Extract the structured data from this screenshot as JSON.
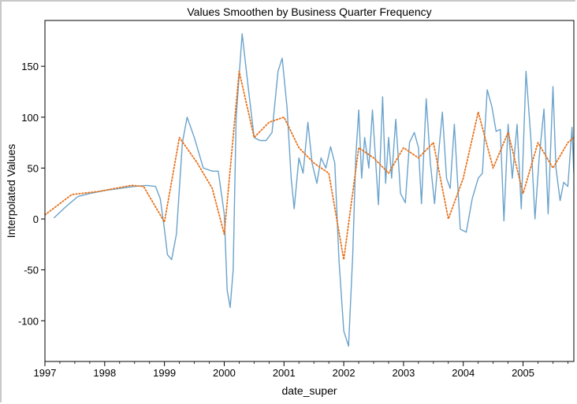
{
  "chart_data": {
    "type": "line",
    "title": "Values Smoothen by Business Quarter Frequency",
    "xlabel": "date_super",
    "ylabel": "Interpolated Values",
    "xlim": [
      1997.0,
      2005.85
    ],
    "ylim": [
      -140,
      195
    ],
    "x_ticks": [
      1997,
      1998,
      1999,
      2000,
      2001,
      2002,
      2003,
      2004,
      2005
    ],
    "x_tick_labels": [
      "1997",
      "1998",
      "1999",
      "2000",
      "2001",
      "2002",
      "2003",
      "2004",
      "2005"
    ],
    "y_ticks": [
      -100,
      -50,
      0,
      50,
      100,
      150
    ],
    "y_tick_labels": [
      "-100",
      "-50",
      "0",
      "50",
      "100",
      "150"
    ],
    "grid": false,
    "legend": "none",
    "series": [
      {
        "color": "#6aa3cb",
        "style": "solid",
        "x": [
          1997.15,
          1997.35,
          1997.55,
          1997.75,
          1998.0,
          1998.25,
          1998.5,
          1998.7,
          1998.85,
          1998.93,
          1999.0,
          1999.05,
          1999.12,
          1999.2,
          1999.3,
          1999.38,
          1999.5,
          1999.65,
          1999.8,
          1999.9,
          2000.0,
          2000.05,
          2000.1,
          2000.15,
          2000.2,
          2000.3,
          2000.4,
          2000.5,
          2000.6,
          2000.7,
          2000.8,
          2000.9,
          2000.97,
          2001.05,
          2001.12,
          2001.17,
          2001.25,
          2001.32,
          2001.4,
          2001.47,
          2001.55,
          2001.62,
          2001.7,
          2001.78,
          2001.85,
          2001.92,
          2002.0,
          2002.08,
          2002.15,
          2002.2,
          2002.25,
          2002.3,
          2002.35,
          2002.42,
          2002.48,
          2002.53,
          2002.58,
          2002.65,
          2002.7,
          2002.75,
          2002.8,
          2002.87,
          2002.95,
          2003.03,
          2003.1,
          2003.18,
          2003.25,
          2003.3,
          2003.38,
          2003.45,
          2003.52,
          2003.58,
          2003.65,
          2003.72,
          2003.78,
          2003.85,
          2003.95,
          2004.05,
          2004.15,
          2004.25,
          2004.32,
          2004.4,
          2004.48,
          2004.55,
          2004.62,
          2004.68,
          2004.75,
          2004.82,
          2004.9,
          2004.97,
          2005.05,
          2005.13,
          2005.2,
          2005.27,
          2005.35,
          2005.42,
          2005.5,
          2005.55,
          2005.62,
          2005.68,
          2005.75,
          2005.82,
          2005.85
        ],
        "y": [
          1,
          12,
          22,
          25,
          28,
          30,
          32,
          33,
          32,
          20,
          -10,
          -35,
          -40,
          -15,
          75,
          100,
          80,
          50,
          47,
          47,
          5,
          -70,
          -87,
          -50,
          100,
          182,
          130,
          80,
          77,
          77,
          85,
          145,
          158,
          110,
          40,
          10,
          60,
          45,
          95,
          55,
          35,
          60,
          50,
          71,
          55,
          -40,
          -110,
          -125,
          -35,
          60,
          107,
          40,
          80,
          50,
          107,
          60,
          14,
          120,
          35,
          80,
          40,
          98,
          25,
          16,
          75,
          85,
          70,
          15,
          118,
          55,
          15,
          60,
          105,
          40,
          30,
          93,
          -10,
          -13,
          20,
          40,
          45,
          127,
          110,
          86,
          88,
          -2,
          93,
          40,
          93,
          10,
          145,
          80,
          0,
          60,
          108,
          5,
          130,
          50,
          18,
          36,
          32,
          90,
          45
        ]
      },
      {
        "color": "#e8711a",
        "style": "dotted",
        "x": [
          1997.0,
          1997.45,
          1997.9,
          1998.45,
          1998.65,
          1999.0,
          1999.25,
          1999.55,
          1999.8,
          2000.0,
          2000.25,
          2000.5,
          2000.75,
          2001.0,
          2001.25,
          2001.5,
          2001.75,
          2002.0,
          2002.25,
          2002.5,
          2002.75,
          2003.0,
          2003.25,
          2003.5,
          2003.75,
          2004.0,
          2004.25,
          2004.5,
          2004.75,
          2005.0,
          2005.25,
          2005.5,
          2005.75,
          2005.85
        ],
        "y": [
          4,
          24,
          27,
          33,
          32,
          -3,
          80,
          55,
          30,
          -15,
          145,
          80,
          95,
          100,
          70,
          55,
          45,
          -40,
          70,
          60,
          45,
          70,
          60,
          75,
          0,
          40,
          105,
          50,
          85,
          25,
          75,
          50,
          75,
          80
        ]
      }
    ]
  }
}
